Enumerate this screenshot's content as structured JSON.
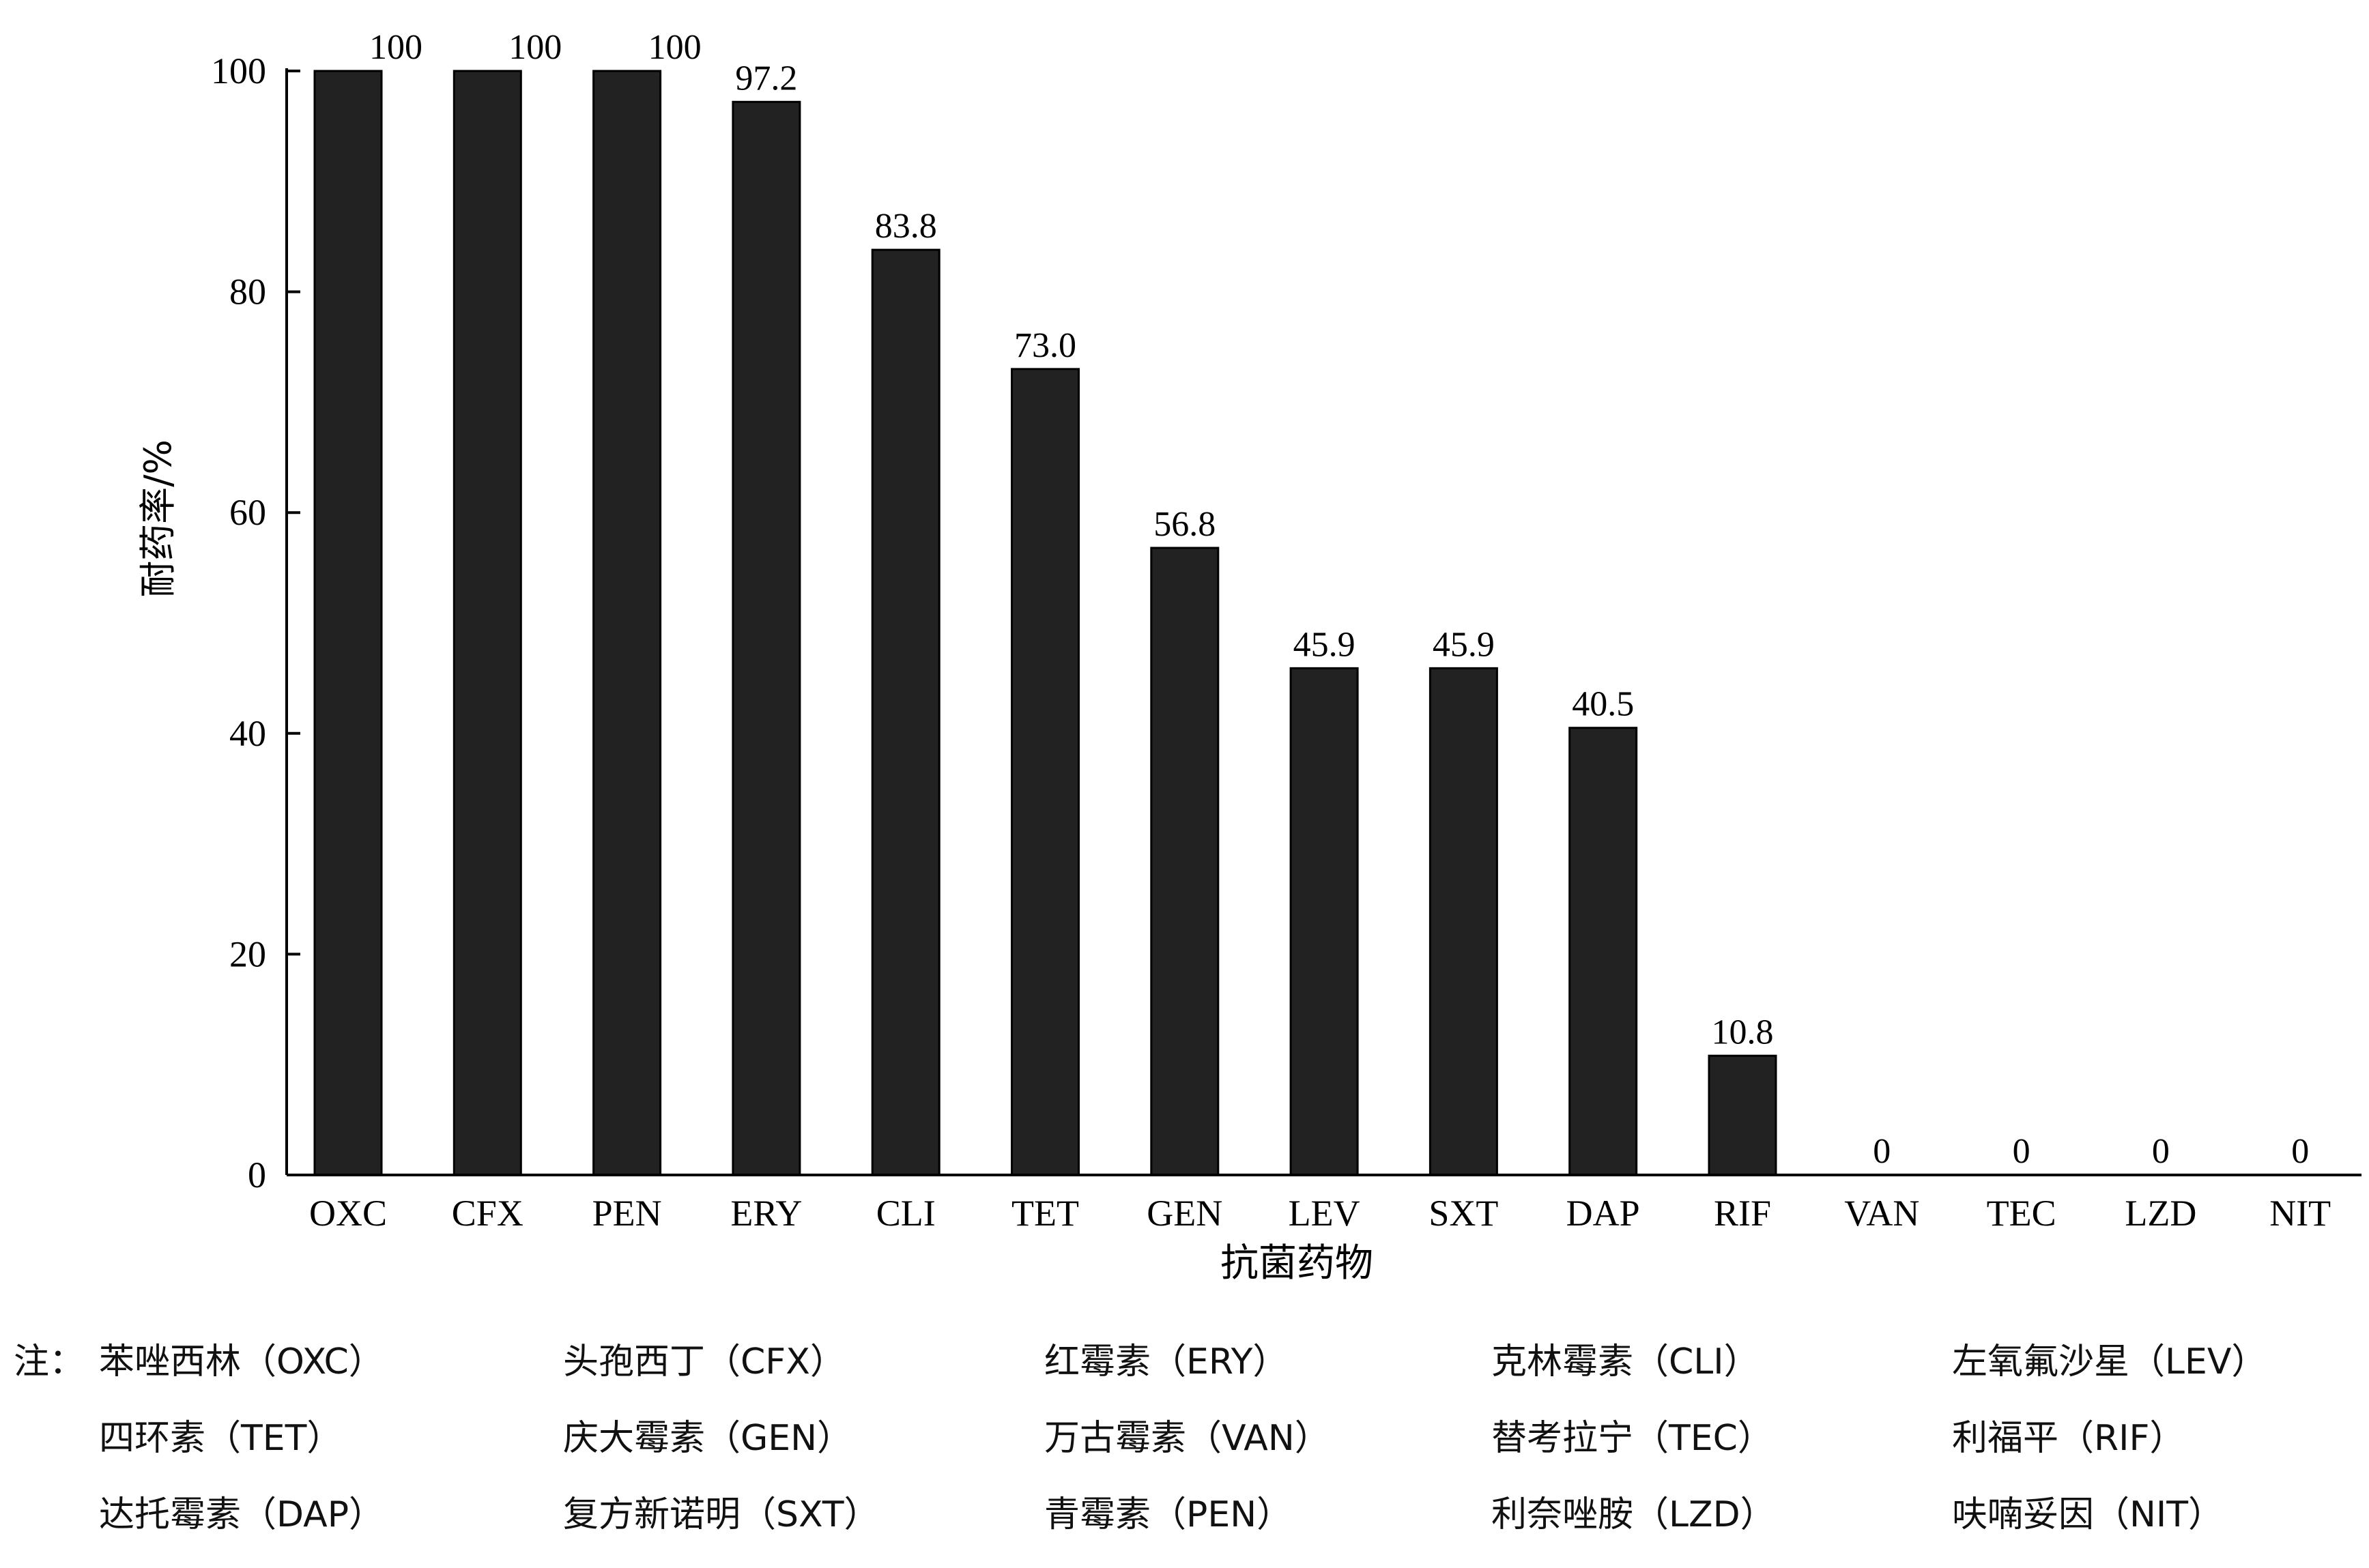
{
  "chart_data": {
    "type": "bar",
    "title": "",
    "xlabel": "抗菌药物",
    "ylabel": "耐药率/%",
    "ylim": [
      0,
      100
    ],
    "yticks": [
      0,
      20,
      40,
      60,
      80,
      100
    ],
    "grid": false,
    "categories": [
      "OXC",
      "CFX",
      "PEN",
      "ERY",
      "CLI",
      "TET",
      "GEN",
      "LEV",
      "SXT",
      "DAP",
      "RIF",
      "VAN",
      "TEC",
      "LZD",
      "NIT"
    ],
    "values": [
      100,
      100,
      100,
      97.2,
      83.8,
      73.0,
      56.8,
      45.9,
      45.9,
      40.5,
      10.8,
      0,
      0,
      0,
      0
    ],
    "value_labels": [
      "100",
      "100",
      "100",
      "97.2",
      "83.8",
      "73.0",
      "56.8",
      "45.9",
      "45.9",
      "40.5",
      "10.8",
      "0",
      "0",
      "0",
      "0"
    ],
    "bar_color": "#222222"
  },
  "notes": {
    "prefix": "注：",
    "rows": [
      [
        "苯唑西林（OXC）",
        "头孢西丁（CFX）",
        "红霉素（ERY）",
        "克林霉素（CLI）",
        "左氧氟沙星（LEV）"
      ],
      [
        "四环素（TET）",
        "庆大霉素（GEN）",
        "万古霉素（VAN）",
        "替考拉宁（TEC）",
        "利福平（RIF）"
      ],
      [
        "达托霉素（DAP）",
        "复方新诺明（SXT）",
        "青霉素（PEN）",
        "利奈唑胺（LZD）",
        "呋喃妥因（NIT）"
      ]
    ]
  }
}
